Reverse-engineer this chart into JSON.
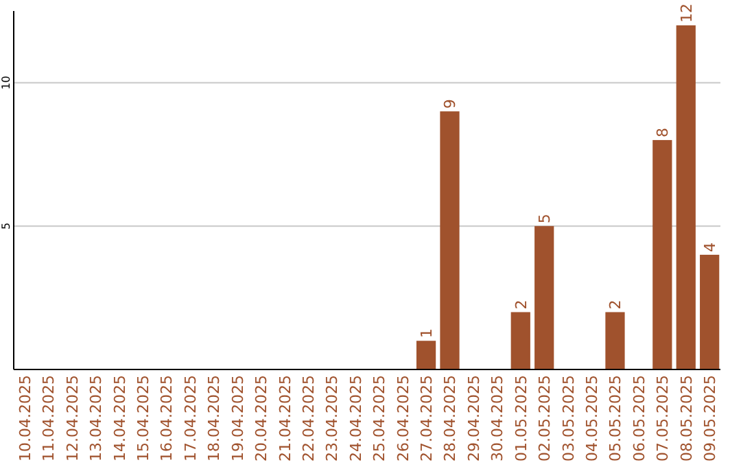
{
  "chart_data": {
    "type": "bar",
    "categories": [
      "10.04.2025",
      "11.04.2025",
      "12.04.2025",
      "13.04.2025",
      "14.04.2025",
      "15.04.2025",
      "16.04.2025",
      "17.04.2025",
      "18.04.2025",
      "19.04.2025",
      "20.04.2025",
      "21.04.2025",
      "22.04.2025",
      "23.04.2025",
      "24.04.2025",
      "25.04.2025",
      "26.04.2025",
      "27.04.2025",
      "28.04.2025",
      "29.04.2025",
      "30.04.2025",
      "01.05.2025",
      "02.05.2025",
      "03.05.2025",
      "04.05.2025",
      "05.05.2025",
      "06.05.2025",
      "07.05.2025",
      "08.05.2025",
      "09.05.2025"
    ],
    "values": [
      0,
      0,
      0,
      0,
      0,
      0,
      0,
      0,
      0,
      0,
      0,
      0,
      0,
      0,
      0,
      0,
      0,
      1,
      9,
      0,
      0,
      2,
      5,
      0,
      0,
      2,
      0,
      8,
      12,
      4
    ],
    "value_labels": [
      null,
      null,
      null,
      null,
      null,
      null,
      null,
      null,
      null,
      null,
      null,
      null,
      null,
      null,
      null,
      null,
      null,
      "1",
      "9",
      null,
      null,
      "2",
      "5",
      null,
      null,
      "2",
      null,
      "8",
      "12",
      "4"
    ],
    "color": "#a0522d",
    "ylim": [
      0,
      12.5
    ],
    "yticks": [
      5,
      10
    ],
    "grid": "y"
  }
}
